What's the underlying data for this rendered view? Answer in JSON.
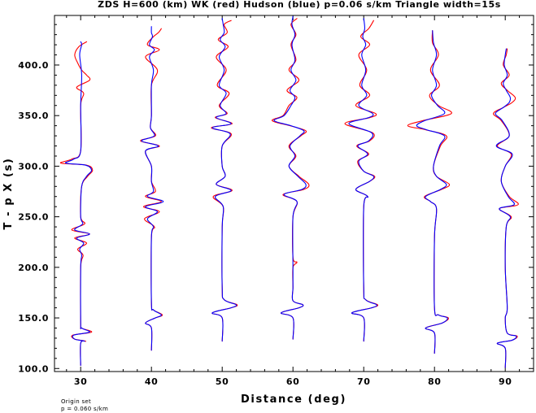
{
  "chart_data": {
    "type": "line",
    "title": "ZDS H=600 (km) WK (red) Hudson (blue) p=0.06 s/km Triangle width=15s",
    "xlabel": "Distance (deg)",
    "ylabel": "T - p X (s)",
    "xlim": [
      26.3,
      94.0
    ],
    "ylim": [
      97.0,
      449.0
    ],
    "x_ticks": [
      30,
      40,
      50,
      60,
      70,
      80,
      90
    ],
    "x_tick_labels": [
      "30",
      "40",
      "50",
      "60",
      "70",
      "80",
      "90"
    ],
    "y_ticks": [
      100.0,
      150.0,
      200.0,
      250.0,
      300.0,
      350.0,
      400.0
    ],
    "y_tick_labels": [
      "100.0",
      "150.0",
      "200.0",
      "250.0",
      "300.0",
      "350.0",
      "400.0"
    ],
    "x_minor_step": 2,
    "y_minor_step": 10,
    "grid": false,
    "trace_amplitude_deg": 2.8,
    "series": [
      {
        "name": "WK",
        "color": "#ff0000",
        "traces": [
          {
            "distance": 30,
            "t": [
              103,
              125,
              127,
              129,
              133,
              136,
              140,
              145,
              200,
              212,
              218,
              224,
              229,
              233,
              237,
              243,
              250,
              280,
              290,
              296,
              301,
              303,
              307,
              315,
              360,
              372,
              378,
              385,
              390,
              395,
              402,
              410,
              418,
              423
            ],
            "amp": [
              0,
              0,
              0.25,
              -0.3,
              -0.4,
              0.55,
              0.05,
              0,
              0,
              0.12,
              -0.15,
              0.3,
              -0.3,
              0.45,
              -0.45,
              0.2,
              0,
              0.05,
              0.35,
              0.6,
              0.3,
              -1,
              -0.45,
              0,
              0,
              0.15,
              -0.2,
              0.45,
              0.3,
              0.05,
              -0.15,
              -0.3,
              -0.1,
              0.3
            ]
          },
          {
            "distance": 40,
            "t": [
              118,
              140,
              145,
              150,
              153,
              158,
              165,
              230,
              240,
              248,
              255,
              260,
              265,
              270,
              275,
              285,
              300,
              315,
              320,
              325,
              330,
              338,
              350,
              380,
              395,
              408,
              415,
              420,
              428,
              432,
              436
            ],
            "amp": [
              0,
              0,
              -0.3,
              0.2,
              0.55,
              0.1,
              0,
              0,
              0.15,
              -0.35,
              0.4,
              -0.4,
              0.5,
              -0.3,
              0.2,
              0,
              0,
              -0.3,
              0.4,
              -0.55,
              0.2,
              -0.05,
              0,
              0,
              0.3,
              -0.3,
              0.4,
              -0.2,
              0.1,
              0.35,
              0.5
            ]
          },
          {
            "distance": 50,
            "t": [
              127,
              150,
              155,
              160,
              163,
              168,
              180,
              240,
              260,
              270,
              276,
              282,
              290,
              300,
              320,
              332,
              338,
              342,
              348,
              352,
              360,
              372,
              380,
              395,
              408,
              418,
              425,
              432,
              440,
              444
            ],
            "amp": [
              0,
              0,
              -0.5,
              0.45,
              0.75,
              0.1,
              0,
              0,
              0.05,
              -0.45,
              0.5,
              -0.3,
              0.15,
              0,
              0,
              0.45,
              -0.55,
              0.5,
              -0.35,
              0.25,
              -0.15,
              0.35,
              -0.25,
              0.2,
              -0.3,
              0.3,
              -0.2,
              0.25,
              0.1,
              0.45
            ]
          },
          {
            "distance": 60,
            "t": [
              129,
              150,
              155,
              160,
              163,
              167,
              180,
              200,
              205,
              210,
              250,
              265,
              272,
              277,
              282,
              290,
              300,
              310,
              320,
              330,
              335,
              340,
              345,
              350,
              360,
              368,
              375,
              385,
              395,
              405,
              420,
              430,
              440,
              446
            ],
            "amp": [
              0,
              0,
              -0.6,
              0.3,
              0.5,
              0,
              0,
              0,
              0.2,
              0,
              0,
              0.2,
              -0.5,
              0.55,
              0.8,
              0.3,
              -0.2,
              0.15,
              -0.2,
              0.4,
              0.65,
              -0.15,
              -1.05,
              -0.5,
              -0.2,
              0.2,
              -0.3,
              0.3,
              -0.2,
              0.15,
              -0.1,
              0.15,
              -0.1,
              0.2
            ]
          },
          {
            "distance": 70,
            "t": [
              127,
              150,
              155,
              160,
              163,
              168,
              180,
              260,
              270,
              277,
              285,
              290,
              295,
              305,
              312,
              320,
              325,
              333,
              342,
              348,
              352,
              360,
              370,
              380,
              395,
              410,
              420,
              428,
              436,
              444
            ],
            "amp": [
              0,
              0,
              -0.6,
              0.4,
              0.7,
              0.1,
              0,
              0,
              0.2,
              -0.4,
              0.3,
              0.55,
              0,
              -0.3,
              0.25,
              -0.35,
              0.3,
              0.45,
              -0.95,
              0.3,
              0.6,
              -0.4,
              0.3,
              -0.2,
              0.15,
              -0.25,
              0.3,
              -0.15,
              0.25,
              0.5
            ]
          },
          {
            "distance": 80,
            "t": [
              115,
              135,
              140,
              145,
              150,
              153,
              160,
              230,
              258,
              265,
              270,
              277,
              282,
              290,
              300,
              320,
              330,
              336,
              340,
              345,
              352,
              360,
              370,
              380,
              395,
              410,
              422,
              434
            ],
            "amp": [
              0,
              0,
              -0.45,
              0.4,
              0.7,
              0.2,
              0,
              0,
              0.1,
              -0.2,
              -0.5,
              0.35,
              0.75,
              0.1,
              -0.05,
              0.3,
              0.6,
              -0.45,
              -1.35,
              -0.6,
              0.85,
              0.2,
              -0.25,
              0.25,
              -0.2,
              0.2,
              -0.1,
              -0.1
            ]
          },
          {
            "distance": 90,
            "t": [
              101,
              120,
              125,
              128,
              132,
              135,
              150,
              160,
              200,
              240,
              250,
              258,
              262,
              270,
              285,
              300,
              312,
              320,
              330,
              345,
              352,
              358,
              363,
              368,
              375,
              382,
              390,
              400,
              410,
              416
            ],
            "amp": [
              0,
              0,
              -0.4,
              0.35,
              0.6,
              0.1,
              0,
              0.1,
              0,
              0.05,
              0.3,
              -0.3,
              0.65,
              0.2,
              -0.2,
              0,
              0.3,
              -0.4,
              0.2,
              -0.2,
              -0.6,
              -0.1,
              0.35,
              0.5,
              0.1,
              -0.2,
              0.2,
              -0.1,
              0.05,
              0.1
            ]
          }
        ]
      },
      {
        "name": "Hudson",
        "color": "#0000ff",
        "traces": [
          {
            "distance": 30,
            "t": [
              103,
              125,
              127,
              129,
              133,
              136,
              140,
              145,
              200,
              212,
              218,
              224,
              229,
              233,
              237,
              243,
              250,
              280,
              290,
              296,
              301,
              303,
              307,
              315,
              360,
              390,
              410,
              420,
              423
            ],
            "amp": [
              0,
              0,
              0.2,
              -0.3,
              -0.35,
              0.45,
              0.05,
              0,
              0,
              0.05,
              -0.05,
              0.15,
              -0.2,
              0.45,
              -0.3,
              0.1,
              0,
              0.05,
              0.3,
              0.55,
              0.25,
              -0.75,
              -0.35,
              0,
              0,
              0.05,
              -0.05,
              0.05,
              0
            ]
          },
          {
            "distance": 40,
            "t": [
              118,
              140,
              145,
              150,
              153,
              158,
              165,
              230,
              240,
              248,
              255,
              260,
              265,
              270,
              275,
              285,
              300,
              315,
              320,
              325,
              330,
              338,
              350,
              380,
              395,
              408,
              415,
              420,
              428,
              432,
              438
            ],
            "amp": [
              0,
              0,
              -0.3,
              0.2,
              0.5,
              0.1,
              0,
              0,
              0.1,
              -0.2,
              0.3,
              -0.3,
              0.6,
              -0.2,
              0.1,
              0,
              0,
              -0.3,
              0.35,
              -0.5,
              0.15,
              -0.05,
              0,
              0,
              0.1,
              -0.1,
              0.15,
              -0.1,
              0.05,
              0,
              0
            ]
          },
          {
            "distance": 50,
            "t": [
              127,
              150,
              155,
              160,
              163,
              168,
              180,
              240,
              260,
              270,
              276,
              282,
              290,
              300,
              320,
              332,
              338,
              342,
              348,
              352,
              360,
              372,
              380,
              395,
              408,
              418,
              425,
              432,
              440,
              446
            ],
            "amp": [
              0,
              0,
              -0.5,
              0.45,
              0.7,
              0.1,
              0,
              0,
              0.05,
              -0.35,
              0.45,
              -0.3,
              0.15,
              0,
              0,
              0.4,
              -0.5,
              0.45,
              -0.3,
              0.2,
              -0.1,
              0.2,
              -0.15,
              0.1,
              -0.15,
              0.15,
              -0.1,
              0.1,
              0.05,
              0
            ]
          },
          {
            "distance": 60,
            "t": [
              129,
              150,
              155,
              160,
              163,
              167,
              180,
              200,
              250,
              265,
              272,
              277,
              282,
              290,
              300,
              310,
              320,
              330,
              335,
              340,
              345,
              350,
              360,
              368,
              375,
              385,
              395,
              405,
              420,
              430,
              440,
              448
            ],
            "amp": [
              0,
              0,
              -0.6,
              0.3,
              0.5,
              0,
              0,
              0,
              0,
              0.2,
              -0.45,
              0.45,
              0.65,
              0.25,
              -0.2,
              0.1,
              -0.15,
              0.35,
              0.55,
              -0.1,
              -0.95,
              -0.45,
              -0.1,
              0.1,
              -0.15,
              0.15,
              -0.1,
              0.1,
              -0.05,
              0.1,
              -0.05,
              0
            ]
          },
          {
            "distance": 70,
            "t": [
              127,
              150,
              155,
              160,
              163,
              168,
              180,
              260,
              270,
              277,
              285,
              290,
              295,
              305,
              312,
              320,
              325,
              333,
              342,
              348,
              352,
              360,
              370,
              380,
              395,
              410,
              420,
              428,
              436,
              446
            ],
            "amp": [
              0,
              0,
              -0.6,
              0.4,
              0.65,
              0.1,
              0,
              0,
              0.2,
              -0.4,
              0.3,
              0.5,
              0,
              -0.25,
              0.2,
              -0.3,
              0.25,
              0.4,
              -0.75,
              0.25,
              0.45,
              -0.25,
              0.15,
              -0.1,
              0.1,
              -0.1,
              0.1,
              -0.05,
              0.05,
              0
            ]
          },
          {
            "distance": 80,
            "t": [
              115,
              135,
              140,
              145,
              150,
              153,
              160,
              230,
              258,
              265,
              270,
              277,
              282,
              290,
              300,
              320,
              330,
              336,
              340,
              345,
              352,
              360,
              370,
              380,
              395,
              410,
              422,
              434
            ],
            "amp": [
              0,
              0,
              -0.45,
              0.4,
              0.65,
              0.2,
              0,
              0,
              0.1,
              -0.2,
              -0.45,
              0.3,
              0.6,
              0.1,
              -0.05,
              0.25,
              0.5,
              -0.4,
              -0.9,
              -0.5,
              0.5,
              0.15,
              -0.15,
              0.1,
              -0.1,
              0.1,
              -0.05,
              -0.1
            ]
          },
          {
            "distance": 90,
            "t": [
              101,
              120,
              125,
              128,
              132,
              135,
              150,
              160,
              200,
              240,
              250,
              258,
              262,
              270,
              285,
              300,
              312,
              320,
              330,
              345,
              352,
              358,
              363,
              368,
              375,
              382,
              390,
              400,
              410,
              416
            ],
            "amp": [
              0,
              0,
              -0.4,
              0.35,
              0.55,
              0.1,
              0,
              0.1,
              0,
              0.05,
              0.25,
              -0.3,
              0.45,
              0.15,
              -0.2,
              0,
              0.35,
              -0.45,
              0.2,
              -0.15,
              -0.5,
              -0.1,
              0.2,
              0.25,
              0.05,
              -0.1,
              0.1,
              -0.05,
              0,
              0.05
            ]
          }
        ]
      }
    ]
  },
  "footnote": {
    "line1": "Origin set",
    "line2": "p = 0.060 s/km"
  }
}
